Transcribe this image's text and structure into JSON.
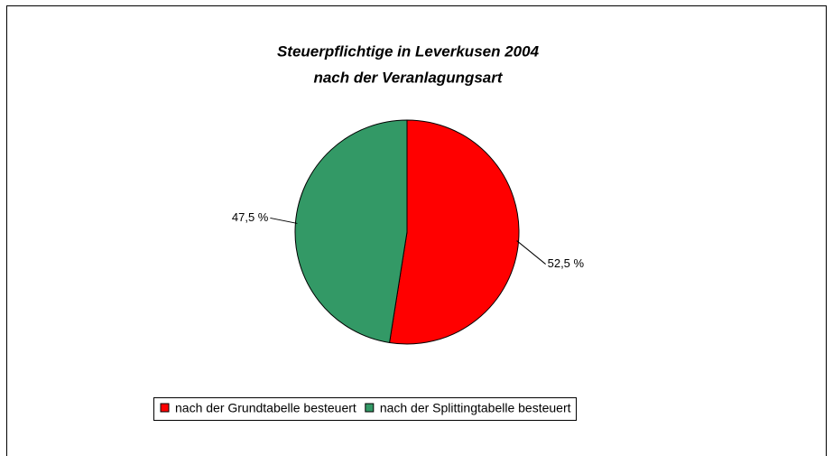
{
  "chart_data": {
    "type": "pie",
    "title": [
      "Steuerpflichtige in Leverkusen 2004",
      "nach der Veranlagungsart"
    ],
    "categories": [
      "nach der Grundtabelle besteuert",
      "nach der Splittingtabelle besteuert"
    ],
    "values": [
      52.5,
      47.5
    ],
    "value_labels": [
      "52,5 %",
      "47,5 %"
    ],
    "colors": [
      "#ff0000",
      "#339966"
    ]
  }
}
